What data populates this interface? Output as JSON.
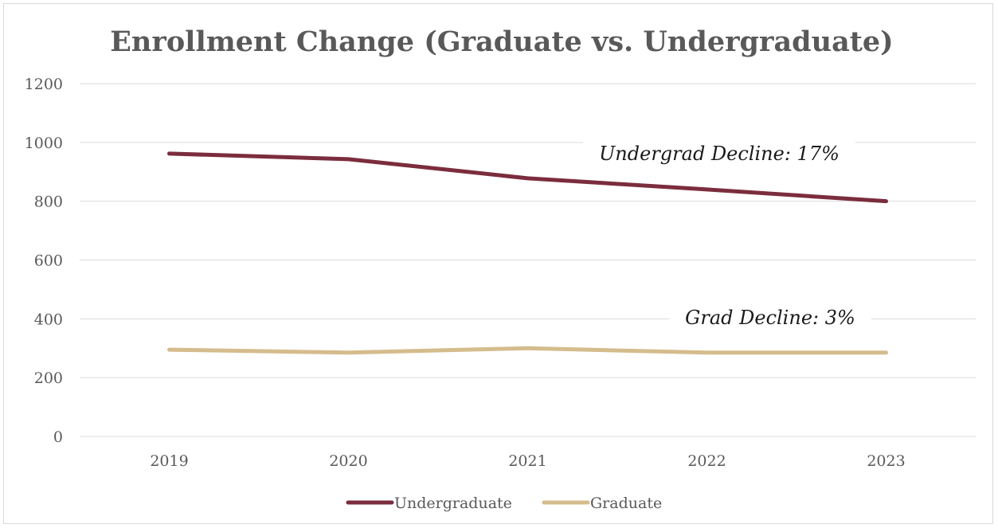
{
  "chart_data": {
    "type": "line",
    "title": "Enrollment Change (Graduate vs. Undergraduate)",
    "xlabel": "",
    "ylabel": "",
    "categories": [
      "2019",
      "2020",
      "2021",
      "2022",
      "2023"
    ],
    "ylim": [
      0,
      1200
    ],
    "yticks": [
      0,
      200,
      400,
      600,
      800,
      1000,
      1200
    ],
    "grid": true,
    "legend_position": "bottom",
    "series": [
      {
        "name": "Undergraduate",
        "color": "#7b2d3d",
        "values": [
          962,
          943,
          878,
          840,
          800
        ]
      },
      {
        "name": "Graduate",
        "color": "#d4bc8c",
        "values": [
          295,
          285,
          300,
          285,
          285
        ]
      }
    ],
    "annotations": [
      {
        "text": "Undergrad Decline: 17%",
        "near_series": "Undergraduate"
      },
      {
        "text": "Grad Decline: 3%",
        "near_series": "Graduate"
      }
    ]
  }
}
